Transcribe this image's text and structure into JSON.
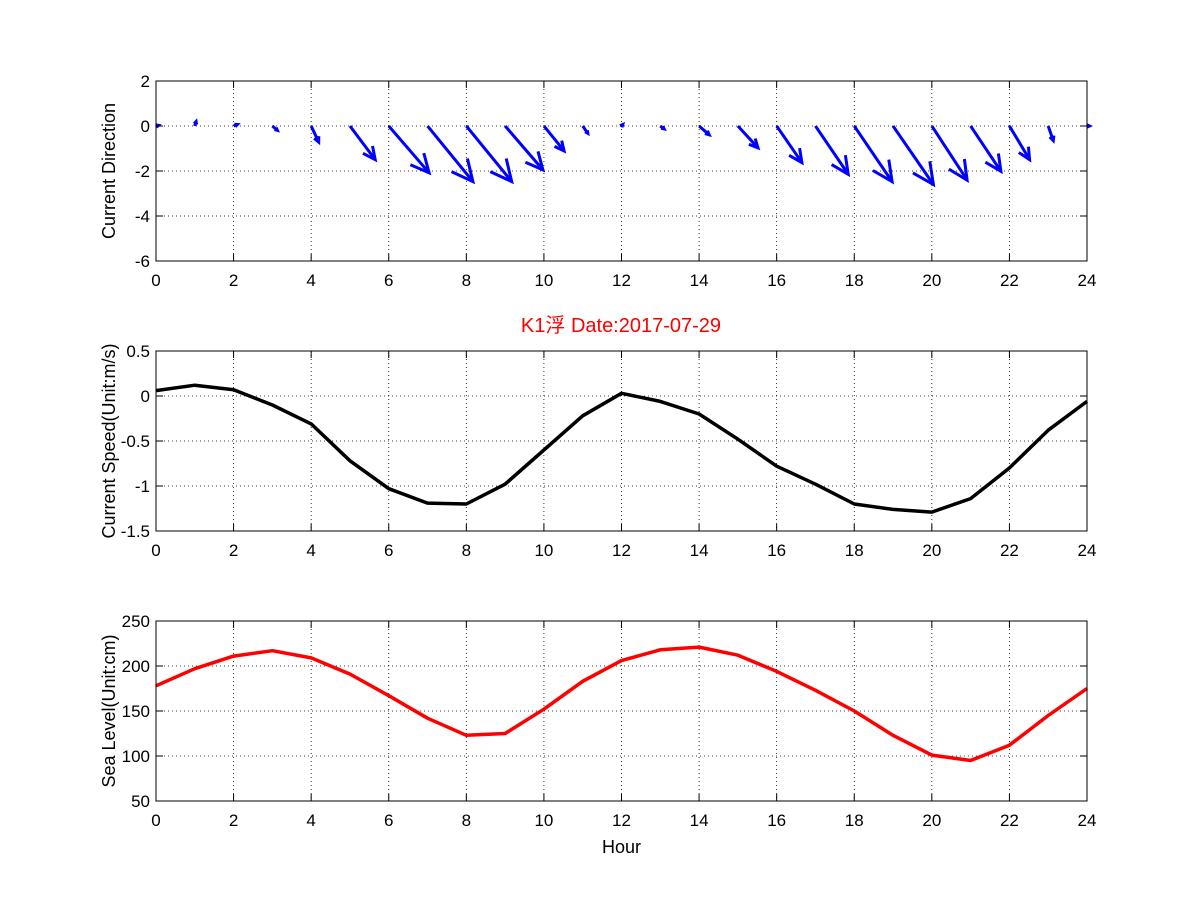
{
  "figure_title": "K1浮    Date:2017-07-29",
  "title_color": "#ff0000",
  "chart_data": [
    {
      "type": "quiver",
      "ylabel": "Current Direction",
      "xlim": [
        0,
        24
      ],
      "ylim": [
        -6,
        2
      ],
      "xticks": [
        0,
        2,
        4,
        6,
        8,
        10,
        12,
        14,
        16,
        18,
        20,
        22,
        24
      ],
      "yticks": [
        -6,
        -4,
        -2,
        0,
        2
      ],
      "grid": true,
      "color": "#0000ff",
      "x": [
        0,
        1,
        2,
        3,
        4,
        5,
        6,
        7,
        8,
        9,
        10,
        11,
        12,
        13,
        14,
        15,
        16,
        17,
        18,
        19,
        20,
        21,
        22,
        23,
        24
      ],
      "u": [
        0.1,
        0.05,
        0.15,
        0.2,
        0.3,
        1.0,
        1.6,
        1.8,
        1.8,
        1.5,
        0.8,
        0.2,
        0.05,
        0.15,
        0.4,
        0.8,
        1.0,
        1.3,
        1.5,
        1.6,
        1.4,
        1.2,
        0.8,
        0.2,
        0.1
      ],
      "v": [
        0.05,
        0.3,
        0.1,
        -0.3,
        -1.1,
        -2.3,
        -3.2,
        -3.8,
        -3.8,
        -3.0,
        -1.7,
        -0.5,
        0.1,
        -0.2,
        -0.6,
        -1.5,
        -2.5,
        -3.3,
        -3.8,
        -4.0,
        -3.7,
        -3.1,
        -2.3,
        -1.0,
        0.0
      ],
      "arrow_scale": 0.65
    },
    {
      "type": "line",
      "ylabel": "Current Speed(Unit:m/s)",
      "xlim": [
        0,
        24
      ],
      "ylim": [
        -1.5,
        0.5
      ],
      "xticks": [
        0,
        2,
        4,
        6,
        8,
        10,
        12,
        14,
        16,
        18,
        20,
        22,
        24
      ],
      "yticks": [
        -1.5,
        -1,
        -0.5,
        0,
        0.5
      ],
      "ytick_labels": [
        "-1.5",
        "-1",
        "-0.5",
        "0",
        "0.5"
      ],
      "grid": true,
      "color": "#000000",
      "x": [
        0,
        1,
        2,
        3,
        4,
        5,
        6,
        7,
        8,
        9,
        10,
        11,
        12,
        13,
        14,
        15,
        16,
        17,
        18,
        19,
        20,
        21,
        22,
        23,
        24
      ],
      "y": [
        0.06,
        0.12,
        0.07,
        -0.1,
        -0.31,
        -0.72,
        -1.03,
        -1.19,
        -1.2,
        -0.98,
        -0.6,
        -0.22,
        0.03,
        -0.06,
        -0.2,
        -0.48,
        -0.78,
        -0.98,
        -1.2,
        -1.26,
        -1.29,
        -1.14,
        -0.8,
        -0.38,
        -0.06
      ]
    },
    {
      "type": "line",
      "ylabel": "Sea Level(Unit:cm)",
      "xlabel": "Hour",
      "xlim": [
        0,
        24
      ],
      "ylim": [
        50,
        250
      ],
      "xticks": [
        0,
        2,
        4,
        6,
        8,
        10,
        12,
        14,
        16,
        18,
        20,
        22,
        24
      ],
      "yticks": [
        50,
        100,
        150,
        200,
        250
      ],
      "grid": true,
      "color": "#ff0000",
      "x": [
        0,
        1,
        2,
        3,
        4,
        5,
        6,
        7,
        8,
        9,
        10,
        11,
        12,
        13,
        14,
        15,
        16,
        17,
        18,
        19,
        20,
        21,
        22,
        23,
        24
      ],
      "y": [
        178,
        197,
        211,
        217,
        209,
        191,
        167,
        142,
        123,
        125,
        152,
        183,
        206,
        218,
        221,
        212,
        194,
        173,
        150,
        123,
        101,
        95,
        112,
        145,
        175
      ]
    }
  ]
}
